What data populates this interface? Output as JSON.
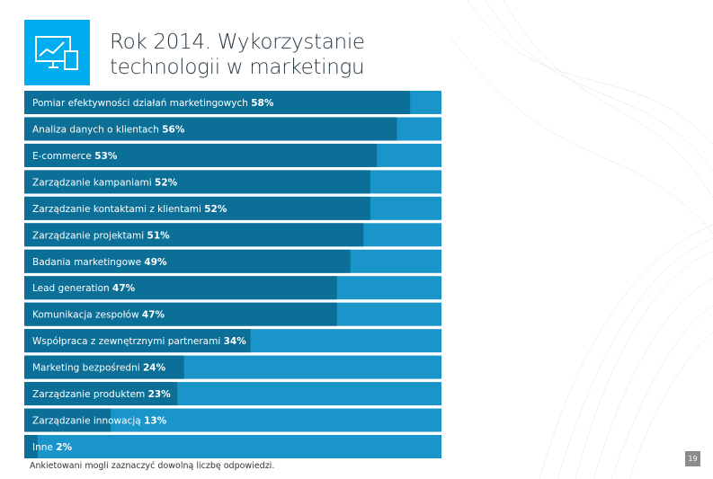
{
  "chart_data": {
    "type": "bar",
    "orientation": "horizontal",
    "title": "Rok 2014. Wykorzystanie technologii w marketingu",
    "categories": [
      "Pomiar efektywności działań marketingowych",
      "Analiza danych o klientach",
      "E-commerce",
      "Zarządzanie kampaniami",
      "Zarządzanie kontaktami z klientami",
      "Zarządzanie projektami",
      "Badania marketingowe",
      "Lead generation",
      "Komunikacja zespołów",
      "Współpraca z zewnętrznymi partnerami",
      "Marketing bezpośredni",
      "Zarządzanie produktem",
      "Zarządzanie innowacją",
      "Inne"
    ],
    "values": [
      58,
      56,
      53,
      52,
      52,
      51,
      49,
      47,
      47,
      34,
      24,
      23,
      13,
      2
    ],
    "value_labels": [
      "58%",
      "56%",
      "53%",
      "52%",
      "52%",
      "51%",
      "49%",
      "47%",
      "47%",
      "34%",
      "24%",
      "23%",
      "13%",
      "2%"
    ],
    "color": "#0b6f98",
    "background_color": "#1a95c9",
    "footnote": "Ankietowani mogli zaznaczyć dowolną liczbę odpowiedzi.",
    "page_number": 19
  }
}
